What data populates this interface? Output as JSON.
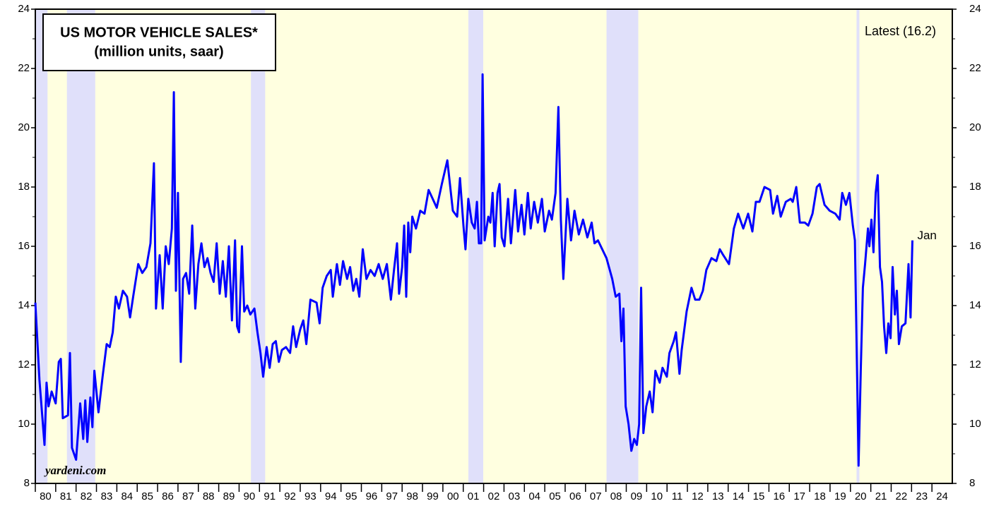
{
  "chart_data": {
    "type": "line",
    "title": "US MOTOR VEHICLE SALES*",
    "subtitle": "(million units, saar)",
    "latest_label": "Latest (16.2)",
    "source": "yardeni.com",
    "end_label": "Jan",
    "background": "#ffffe0",
    "recession_color": "#e0e0fa",
    "recessions": [
      [
        1980.0,
        1980.6
      ],
      [
        1981.55,
        1982.94
      ],
      [
        1990.58,
        1991.28
      ],
      [
        2001.25,
        2001.98
      ],
      [
        2008.03,
        2009.59
      ],
      [
        2020.3,
        2020.44
      ]
    ],
    "xlim": [
      1980,
      2025
    ],
    "xticks": [
      {
        "value": 1980,
        "label": "80"
      },
      {
        "value": 1981,
        "label": "81"
      },
      {
        "value": 1982,
        "label": "82"
      },
      {
        "value": 1983,
        "label": "83"
      },
      {
        "value": 1984,
        "label": "84"
      },
      {
        "value": 1985,
        "label": "85"
      },
      {
        "value": 1986,
        "label": "86"
      },
      {
        "value": 1987,
        "label": "87"
      },
      {
        "value": 1988,
        "label": "88"
      },
      {
        "value": 1989,
        "label": "89"
      },
      {
        "value": 1990,
        "label": "90"
      },
      {
        "value": 1991,
        "label": "91"
      },
      {
        "value": 1992,
        "label": "92"
      },
      {
        "value": 1993,
        "label": "93"
      },
      {
        "value": 1994,
        "label": "94"
      },
      {
        "value": 1995,
        "label": "95"
      },
      {
        "value": 1996,
        "label": "96"
      },
      {
        "value": 1997,
        "label": "97"
      },
      {
        "value": 1998,
        "label": "98"
      },
      {
        "value": 1999,
        "label": "99"
      },
      {
        "value": 2000,
        "label": "00"
      },
      {
        "value": 2001,
        "label": "01"
      },
      {
        "value": 2002,
        "label": "02"
      },
      {
        "value": 2003,
        "label": "03"
      },
      {
        "value": 2004,
        "label": "04"
      },
      {
        "value": 2005,
        "label": "05"
      },
      {
        "value": 2006,
        "label": "06"
      },
      {
        "value": 2007,
        "label": "07"
      },
      {
        "value": 2008,
        "label": "08"
      },
      {
        "value": 2009,
        "label": "09"
      },
      {
        "value": 2010,
        "label": "10"
      },
      {
        "value": 2011,
        "label": "11"
      },
      {
        "value": 2012,
        "label": "12"
      },
      {
        "value": 2013,
        "label": "13"
      },
      {
        "value": 2014,
        "label": "14"
      },
      {
        "value": 2015,
        "label": "15"
      },
      {
        "value": 2016,
        "label": "16"
      },
      {
        "value": 2017,
        "label": "17"
      },
      {
        "value": 2018,
        "label": "18"
      },
      {
        "value": 2019,
        "label": "19"
      },
      {
        "value": 2020,
        "label": "20"
      },
      {
        "value": 2021,
        "label": "21"
      },
      {
        "value": 2022,
        "label": "22"
      },
      {
        "value": 2023,
        "label": "23"
      },
      {
        "value": 2024,
        "label": "24"
      }
    ],
    "ylim": [
      8,
      24
    ],
    "yticks": [
      8,
      10,
      12,
      14,
      16,
      18,
      20,
      22,
      24
    ],
    "x": [
      1980.0,
      1980.2,
      1980.45,
      1980.55,
      1980.65,
      1980.8,
      1981.0,
      1981.15,
      1981.25,
      1981.35,
      1981.6,
      1981.7,
      1981.8,
      1982.0,
      1982.2,
      1982.35,
      1982.45,
      1982.55,
      1982.7,
      1982.8,
      1982.9,
      1983.1,
      1983.3,
      1983.5,
      1983.65,
      1983.8,
      1983.95,
      1984.1,
      1984.3,
      1984.5,
      1984.65,
      1984.8,
      1985.05,
      1985.25,
      1985.45,
      1985.65,
      1985.82,
      1985.92,
      1986.1,
      1986.25,
      1986.4,
      1986.55,
      1986.7,
      1986.8,
      1986.9,
      1987.0,
      1987.14,
      1987.25,
      1987.4,
      1987.55,
      1987.7,
      1987.85,
      1988.0,
      1988.15,
      1988.3,
      1988.45,
      1988.6,
      1988.75,
      1988.9,
      1989.05,
      1989.2,
      1989.35,
      1989.5,
      1989.65,
      1989.8,
      1989.9,
      1990.0,
      1990.14,
      1990.25,
      1990.4,
      1990.55,
      1990.75,
      1990.9,
      1991.05,
      1991.18,
      1991.35,
      1991.5,
      1991.65,
      1991.8,
      1991.95,
      1992.1,
      1992.3,
      1992.5,
      1992.65,
      1992.8,
      1993.0,
      1993.15,
      1993.3,
      1993.5,
      1993.8,
      1993.95,
      1994.1,
      1994.3,
      1994.5,
      1994.6,
      1994.8,
      1994.95,
      1995.1,
      1995.3,
      1995.45,
      1995.6,
      1995.75,
      1995.9,
      1996.07,
      1996.25,
      1996.45,
      1996.65,
      1996.85,
      1997.05,
      1997.25,
      1997.45,
      1997.6,
      1997.75,
      1997.85,
      1998.0,
      1998.1,
      1998.2,
      1998.3,
      1998.4,
      1998.5,
      1998.68,
      1998.89,
      1999.1,
      1999.3,
      1999.5,
      1999.7,
      1999.95,
      2000.22,
      2000.49,
      2000.7,
      2000.84,
      2001.01,
      2001.11,
      2001.25,
      2001.42,
      2001.56,
      2001.67,
      2001.77,
      2001.88,
      2001.95,
      2002.05,
      2002.23,
      2002.33,
      2002.44,
      2002.54,
      2002.68,
      2002.78,
      2002.89,
      2003.02,
      2003.2,
      2003.34,
      2003.55,
      2003.69,
      2003.86,
      2004.0,
      2004.17,
      2004.31,
      2004.48,
      2004.66,
      2004.86,
      2005.0,
      2005.21,
      2005.35,
      2005.53,
      2005.67,
      2005.79,
      2005.91,
      2006.11,
      2006.29,
      2006.46,
      2006.67,
      2006.88,
      2007.09,
      2007.3,
      2007.44,
      2007.61,
      2008.03,
      2008.31,
      2008.48,
      2008.66,
      2008.76,
      2008.86,
      2008.97,
      2009.11,
      2009.25,
      2009.39,
      2009.52,
      2009.63,
      2009.73,
      2009.84,
      2009.98,
      2010.15,
      2010.29,
      2010.43,
      2010.64,
      2010.78,
      2010.99,
      2011.12,
      2011.33,
      2011.44,
      2011.61,
      2011.72,
      2011.96,
      2012.2,
      2012.38,
      2012.59,
      2012.76,
      2012.93,
      2013.18,
      2013.42,
      2013.59,
      2013.76,
      2014.04,
      2014.28,
      2014.49,
      2014.74,
      2014.98,
      2015.19,
      2015.36,
      2015.54,
      2015.78,
      2016.06,
      2016.2,
      2016.41,
      2016.58,
      2016.83,
      2017.07,
      2017.17,
      2017.34,
      2017.52,
      2017.76,
      2017.93,
      2018.14,
      2018.35,
      2018.49,
      2018.73,
      2018.98,
      2019.26,
      2019.47,
      2019.6,
      2019.78,
      2019.95,
      2020.12,
      2020.22,
      2020.4,
      2020.51,
      2020.61,
      2020.72,
      2020.86,
      2020.93,
      2021.03,
      2021.13,
      2021.24,
      2021.34,
      2021.45,
      2021.55,
      2021.65,
      2021.76,
      2021.86,
      2021.97,
      2022.07,
      2022.18,
      2022.28,
      2022.38,
      2022.52,
      2022.7,
      2022.85,
      2022.95,
      2023.04
    ],
    "series": [
      {
        "color": "#0000ff",
        "values": [
          14.1,
          11.5,
          9.3,
          11.4,
          10.6,
          11.1,
          10.7,
          12.1,
          12.2,
          10.2,
          10.3,
          12.4,
          9.2,
          8.8,
          10.7,
          9.5,
          10.8,
          9.4,
          10.9,
          9.9,
          11.8,
          10.4,
          11.6,
          12.7,
          12.6,
          13.1,
          14.3,
          13.9,
          14.5,
          14.3,
          13.6,
          14.3,
          15.4,
          15.1,
          15.3,
          16.1,
          18.8,
          13.9,
          15.7,
          13.9,
          16.0,
          15.4,
          16.6,
          21.2,
          14.5,
          17.8,
          12.1,
          14.9,
          15.1,
          14.4,
          16.7,
          13.9,
          15.4,
          16.1,
          15.3,
          15.6,
          15.1,
          14.8,
          16.1,
          14.4,
          15.5,
          14.3,
          16.0,
          13.5,
          16.2,
          13.3,
          13.1,
          16.0,
          13.8,
          14.0,
          13.7,
          13.9,
          13.1,
          12.4,
          11.6,
          12.6,
          11.9,
          12.7,
          12.8,
          12.1,
          12.5,
          12.6,
          12.4,
          13.3,
          12.6,
          13.2,
          13.5,
          12.7,
          14.2,
          14.1,
          13.4,
          14.6,
          15.0,
          15.2,
          14.3,
          15.4,
          14.7,
          15.5,
          14.9,
          15.3,
          14.5,
          14.9,
          14.3,
          15.9,
          14.9,
          15.2,
          15.0,
          15.4,
          14.9,
          15.4,
          14.2,
          15.2,
          16.1,
          14.4,
          15.3,
          16.7,
          14.3,
          16.8,
          15.8,
          17.0,
          16.6,
          17.2,
          17.1,
          17.9,
          17.6,
          17.3,
          18.1,
          18.9,
          17.2,
          17.0,
          18.3,
          16.7,
          15.9,
          17.6,
          16.8,
          16.6,
          17.5,
          16.1,
          16.1,
          21.8,
          16.2,
          17.0,
          16.8,
          17.8,
          16.0,
          17.8,
          18.1,
          16.3,
          16.0,
          17.6,
          16.1,
          17.9,
          16.5,
          17.4,
          16.4,
          17.8,
          16.6,
          17.5,
          16.8,
          17.6,
          16.5,
          17.2,
          16.9,
          17.8,
          20.7,
          16.9,
          14.9,
          17.6,
          16.2,
          17.2,
          16.4,
          16.9,
          16.3,
          16.8,
          16.1,
          16.2,
          15.6,
          14.9,
          14.3,
          14.4,
          12.8,
          13.9,
          10.6,
          10.0,
          9.1,
          9.5,
          9.3,
          10.0,
          14.6,
          9.7,
          10.6,
          11.1,
          10.4,
          11.8,
          11.4,
          11.9,
          11.6,
          12.4,
          12.8,
          13.1,
          11.7,
          12.5,
          13.8,
          14.6,
          14.2,
          14.2,
          14.5,
          15.2,
          15.6,
          15.5,
          15.9,
          15.7,
          15.4,
          16.6,
          17.1,
          16.6,
          17.1,
          16.5,
          17.5,
          17.5,
          18.0,
          17.9,
          17.1,
          17.7,
          17.0,
          17.5,
          17.6,
          17.5,
          18.0,
          16.8,
          16.8,
          16.7,
          17.1,
          18.0,
          18.1,
          17.4,
          17.2,
          17.1,
          16.9,
          17.8,
          17.4,
          17.8,
          16.7,
          16.2,
          8.6,
          11.9,
          14.6,
          15.4,
          16.6,
          16.0,
          16.9,
          15.8,
          17.8,
          18.4,
          15.3,
          14.8,
          13.3,
          12.4,
          13.4,
          12.9,
          15.3,
          13.7,
          14.5,
          12.7,
          13.3,
          13.4,
          15.4,
          13.6,
          16.2
        ]
      }
    ]
  }
}
